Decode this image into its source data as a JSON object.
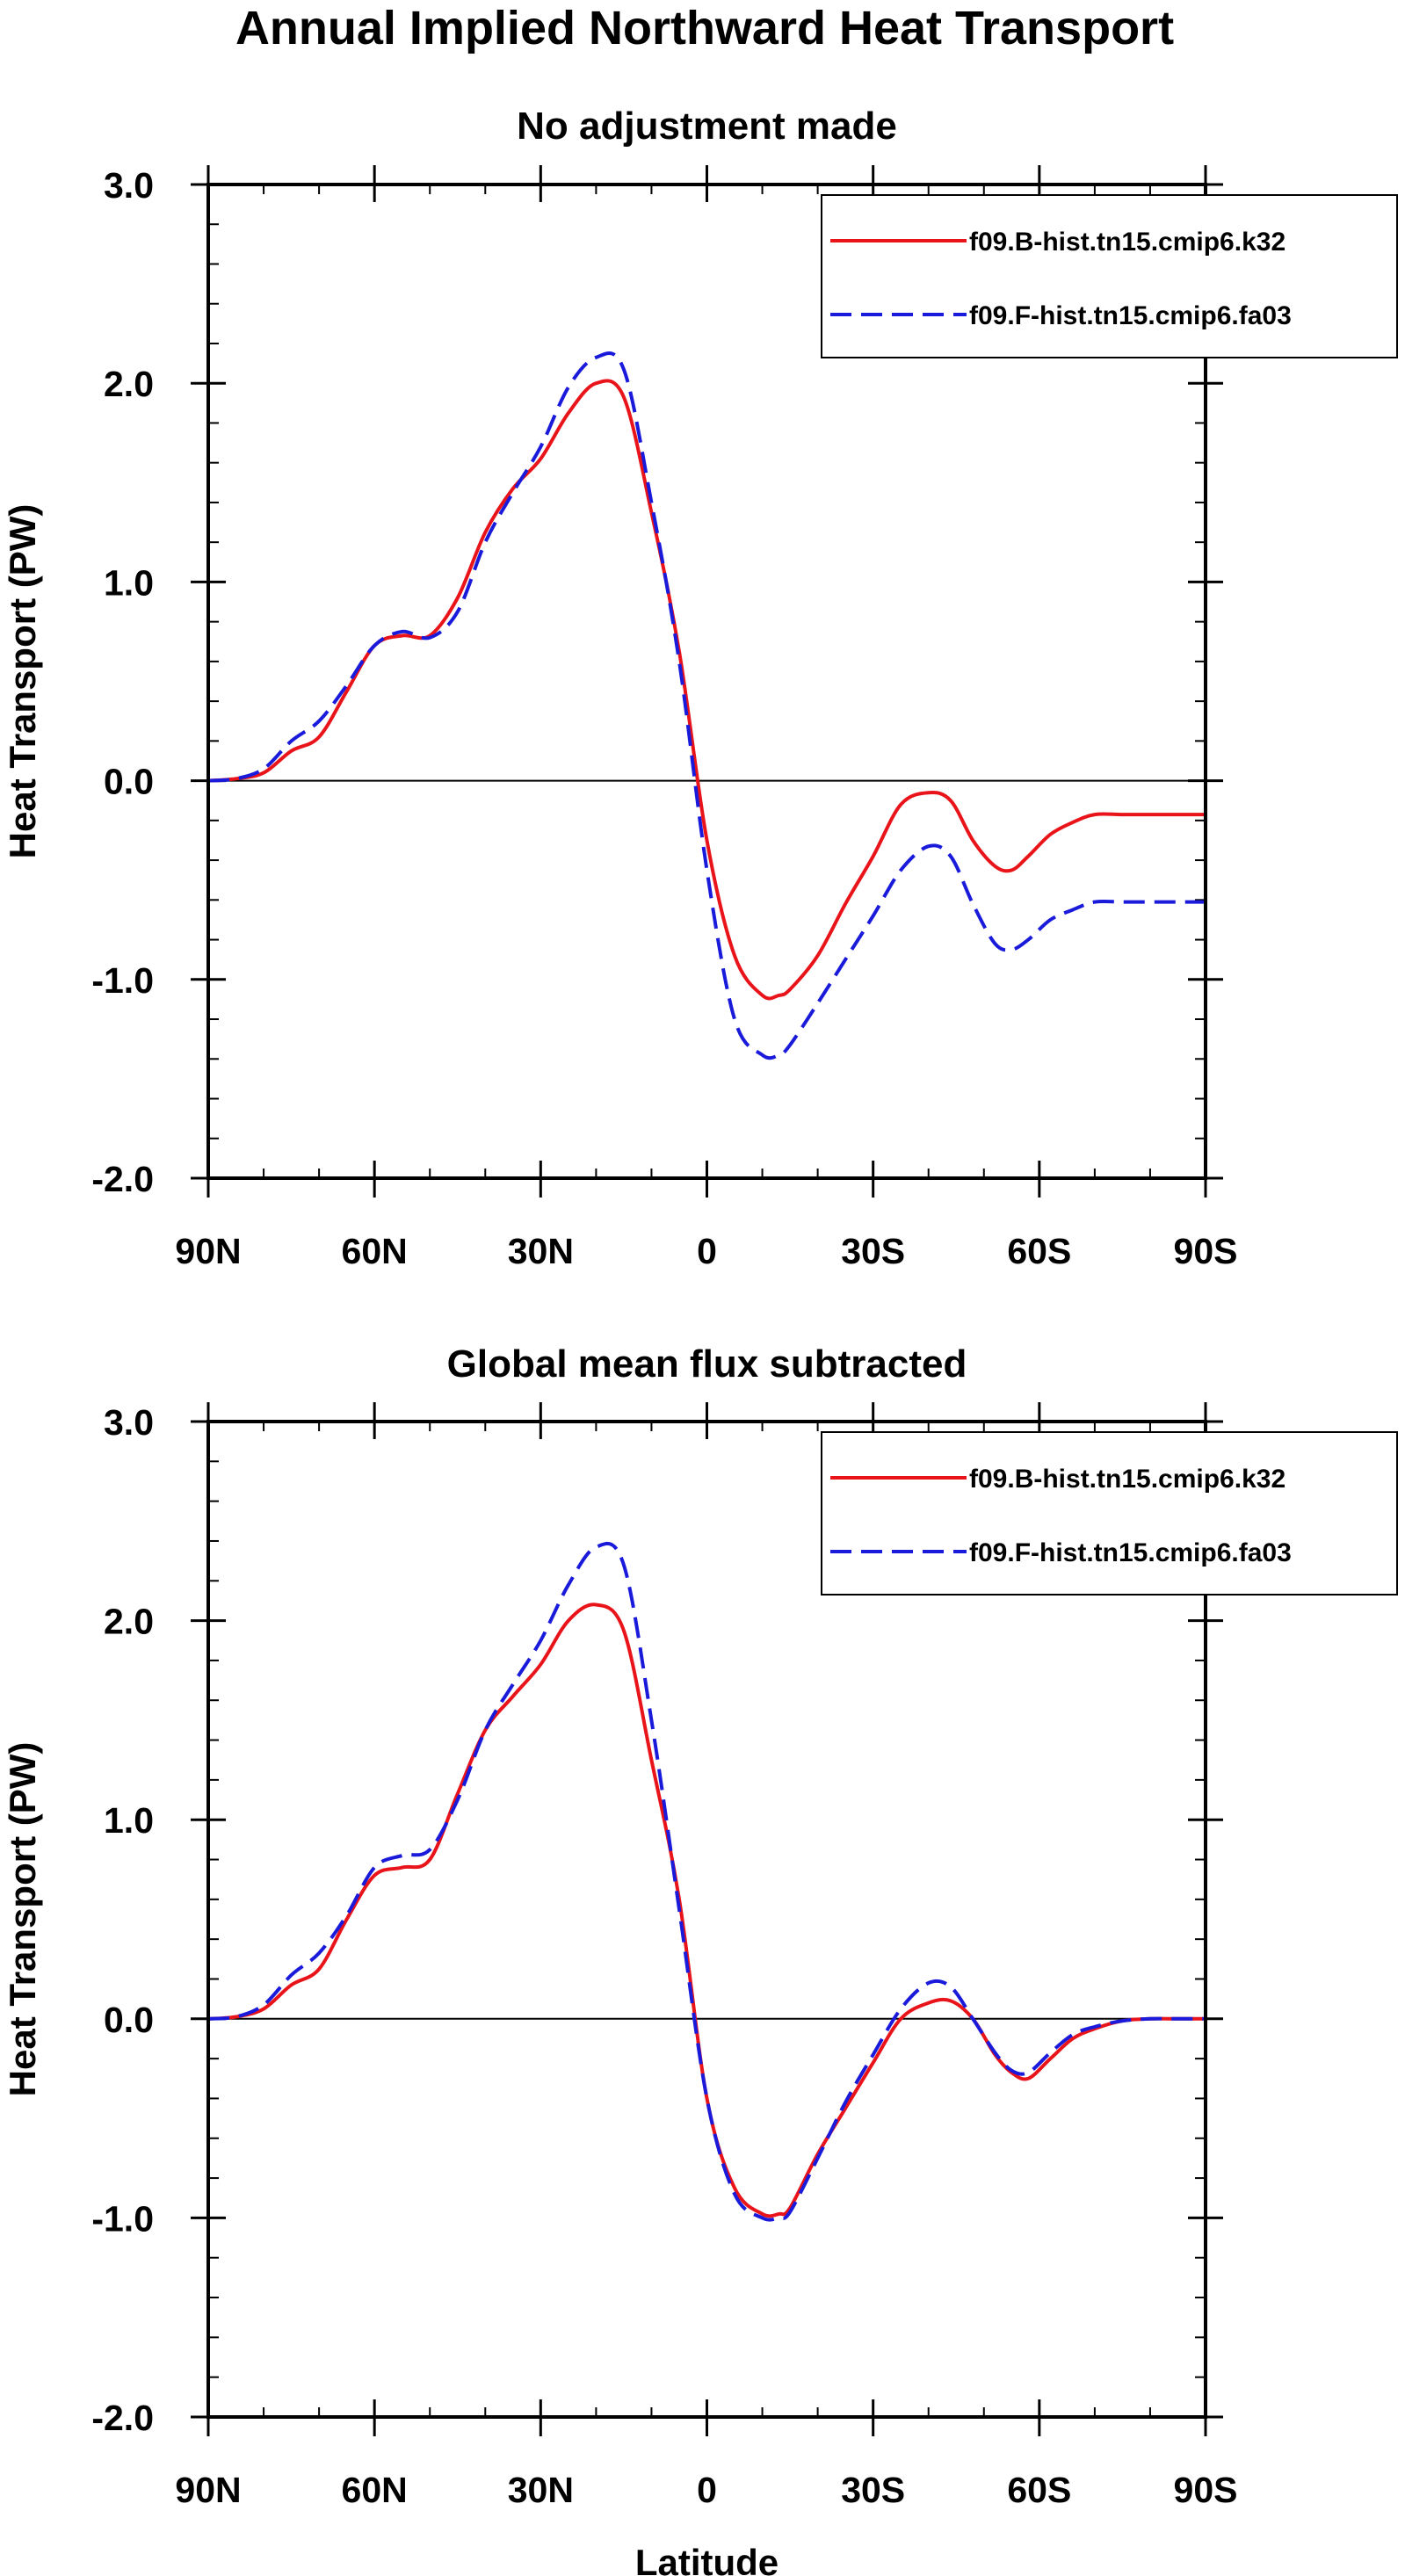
{
  "figure": {
    "title": "Annual Implied Northward Heat Transport"
  },
  "colors": {
    "series_1": "#e8141a",
    "series_2": "#1a1adb"
  },
  "chart_data": [
    {
      "type": "line",
      "title": "No adjustment made",
      "xlabel": "",
      "ylabel": "Heat Transport (PW)",
      "xlim": [
        90,
        -90
      ],
      "ylim": [
        -2.0,
        3.0
      ],
      "x_ticks": [
        90,
        60,
        30,
        0,
        -30,
        -60,
        -90
      ],
      "x_tick_labels": [
        "90N",
        "60N",
        "30N",
        "0",
        "30S",
        "60S",
        "90S"
      ],
      "y_ticks": [
        3.0,
        2.0,
        1.0,
        0.0,
        -1.0,
        -2.0
      ],
      "y_tick_labels": [
        "3.0",
        "2.0",
        "1.0",
        "0.0",
        "-1.0",
        "-2.0"
      ],
      "legend_position": "top-right",
      "series": [
        {
          "name": "f09.B-hist.tn15.cmip6.k32",
          "style": "solid",
          "color": "#e8141a",
          "x": [
            90,
            85,
            80,
            75,
            70,
            65,
            60,
            55,
            50,
            45,
            40,
            35,
            30,
            25,
            20,
            15,
            10,
            5,
            0,
            -5,
            -10,
            -13,
            -15,
            -20,
            -25,
            -30,
            -35,
            -40,
            -44,
            -48,
            -52,
            -55,
            -58,
            -62,
            -66,
            -70,
            -75,
            -80,
            -85,
            -90
          ],
          "y": [
            0.0,
            0.01,
            0.04,
            0.15,
            0.22,
            0.45,
            0.68,
            0.73,
            0.73,
            0.92,
            1.25,
            1.47,
            1.62,
            1.85,
            2.0,
            1.93,
            1.35,
            0.65,
            -0.3,
            -0.88,
            -1.08,
            -1.08,
            -1.05,
            -0.88,
            -0.62,
            -0.38,
            -0.12,
            -0.06,
            -0.1,
            -0.3,
            -0.43,
            -0.45,
            -0.38,
            -0.27,
            -0.21,
            -0.17,
            -0.17,
            -0.17,
            -0.17,
            -0.17
          ]
        },
        {
          "name": "f09.F-hist.tn15.cmip6.fa03",
          "style": "dashed",
          "color": "#1a1adb",
          "x": [
            90,
            85,
            80,
            75,
            70,
            65,
            60,
            55,
            50,
            45,
            40,
            35,
            30,
            25,
            20,
            15,
            10,
            5,
            0,
            -5,
            -10,
            -13,
            -15,
            -20,
            -25,
            -30,
            -35,
            -40,
            -44,
            -48,
            -52,
            -55,
            -58,
            -62,
            -66,
            -70,
            -75,
            -80,
            -85,
            -90
          ],
          "y": [
            0.0,
            0.01,
            0.06,
            0.2,
            0.3,
            0.48,
            0.68,
            0.75,
            0.72,
            0.85,
            1.2,
            1.45,
            1.68,
            1.98,
            2.13,
            2.07,
            1.4,
            0.6,
            -0.45,
            -1.2,
            -1.38,
            -1.38,
            -1.33,
            -1.12,
            -0.9,
            -0.68,
            -0.45,
            -0.33,
            -0.38,
            -0.62,
            -0.82,
            -0.85,
            -0.8,
            -0.7,
            -0.65,
            -0.61,
            -0.61,
            -0.61,
            -0.61,
            -0.61
          ]
        }
      ]
    },
    {
      "type": "line",
      "title": "Global mean flux subtracted",
      "xlabel": "Latitude",
      "ylabel": "Heat Transport (PW)",
      "xlim": [
        90,
        -90
      ],
      "ylim": [
        -2.0,
        3.0
      ],
      "x_ticks": [
        90,
        60,
        30,
        0,
        -30,
        -60,
        -90
      ],
      "x_tick_labels": [
        "90N",
        "60N",
        "30N",
        "0",
        "30S",
        "60S",
        "90S"
      ],
      "y_ticks": [
        3.0,
        2.0,
        1.0,
        0.0,
        -1.0,
        -2.0
      ],
      "y_tick_labels": [
        "3.0",
        "2.0",
        "1.0",
        "0.0",
        "-1.0",
        "-2.0"
      ],
      "legend_position": "top-right",
      "series": [
        {
          "name": "f09.B-hist.tn15.cmip6.k32",
          "style": "solid",
          "color": "#e8141a",
          "x": [
            90,
            85,
            80,
            75,
            70,
            65,
            60,
            55,
            50,
            45,
            40,
            35,
            30,
            25,
            20,
            15,
            10,
            5,
            0,
            -5,
            -10,
            -13,
            -15,
            -20,
            -25,
            -30,
            -35,
            -40,
            -44,
            -48,
            -52,
            -55,
            -58,
            -62,
            -66,
            -70,
            -75,
            -80,
            -85,
            -90
          ],
          "y": [
            0.0,
            0.01,
            0.05,
            0.17,
            0.25,
            0.5,
            0.72,
            0.76,
            0.8,
            1.13,
            1.45,
            1.62,
            1.78,
            2.0,
            2.08,
            1.95,
            1.3,
            0.6,
            -0.4,
            -0.85,
            -0.98,
            -0.98,
            -0.95,
            -0.68,
            -0.45,
            -0.22,
            0.0,
            0.08,
            0.09,
            0.0,
            -0.18,
            -0.27,
            -0.3,
            -0.2,
            -0.1,
            -0.05,
            -0.01,
            0.0,
            0.0,
            0.0
          ]
        },
        {
          "name": "f09.F-hist.tn15.cmip6.fa03",
          "style": "dashed",
          "color": "#1a1adb",
          "x": [
            90,
            85,
            80,
            75,
            70,
            65,
            60,
            55,
            50,
            45,
            40,
            35,
            30,
            25,
            20,
            15,
            10,
            5,
            0,
            -5,
            -10,
            -13,
            -15,
            -20,
            -25,
            -30,
            -35,
            -40,
            -44,
            -48,
            -52,
            -55,
            -58,
            -62,
            -66,
            -70,
            -75,
            -80,
            -85,
            -90
          ],
          "y": [
            0.0,
            0.01,
            0.07,
            0.22,
            0.33,
            0.52,
            0.76,
            0.82,
            0.85,
            1.1,
            1.45,
            1.68,
            1.9,
            2.18,
            2.37,
            2.28,
            1.5,
            0.55,
            -0.4,
            -0.88,
            -1.0,
            -1.0,
            -0.97,
            -0.7,
            -0.42,
            -0.18,
            0.05,
            0.18,
            0.16,
            0.0,
            -0.17,
            -0.26,
            -0.27,
            -0.17,
            -0.08,
            -0.04,
            -0.01,
            0.0,
            0.0,
            0.0
          ]
        }
      ]
    }
  ]
}
